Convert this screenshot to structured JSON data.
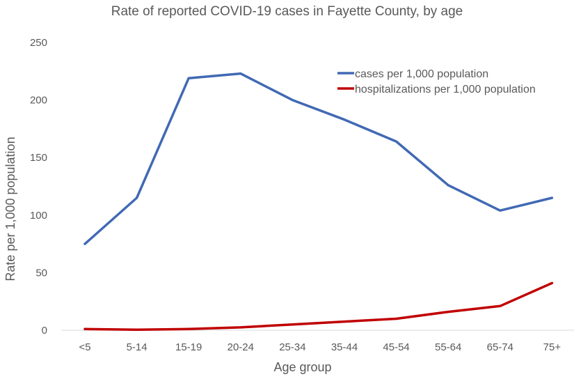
{
  "chart_data": {
    "type": "line",
    "title": "Rate of reported COVID-19 cases in Fayette County, by age",
    "xlabel": "Age group",
    "ylabel": "Rate per 1,000 population",
    "categories": [
      "<5",
      "5-14",
      "15-19",
      "20-24",
      "25-34",
      "35-44",
      "45-54",
      "55-64",
      "65-74",
      "75+"
    ],
    "ylim": [
      0,
      250
    ],
    "yticks": [
      0,
      50,
      100,
      150,
      200,
      250
    ],
    "grid": false,
    "legend_position": "top-right",
    "series": [
      {
        "name": "cases per 1,000 population",
        "color": "#4169B4",
        "values": [
          75,
          115,
          219,
          223,
          200,
          183,
          164,
          126,
          104,
          115
        ]
      },
      {
        "name": "hospitalizations per 1,000 population",
        "color": "#C00000",
        "values": [
          1,
          0.5,
          1,
          2.5,
          5,
          7.5,
          10,
          16,
          21,
          41
        ]
      }
    ]
  }
}
